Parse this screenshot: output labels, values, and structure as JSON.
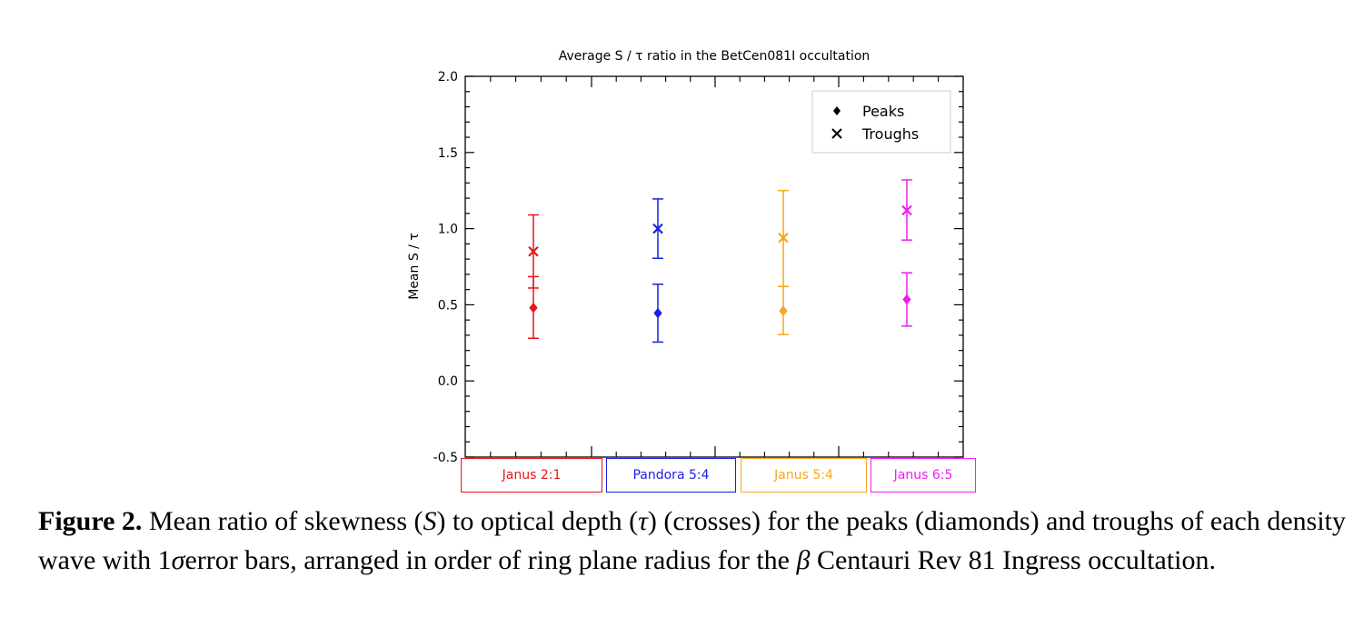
{
  "chart_data": {
    "type": "scatter",
    "title": "Average S / τ ratio in the BetCen081I occultation",
    "ylabel": "Mean S / τ",
    "xlabel": "",
    "ylim": [
      -0.5,
      2.0
    ],
    "yticks": [
      "2.0",
      "1.5",
      "1.0",
      "0.5",
      "0.0",
      "-0.5"
    ],
    "categories": [
      {
        "label": "Janus 2:1",
        "color": "#e8141c"
      },
      {
        "label": "Pandora 5:4",
        "color": "#1a1fe0"
      },
      {
        "label": "Janus 5:4",
        "color": "#f4a71f"
      },
      {
        "label": "Janus 6:5",
        "color": "#f01cf0"
      }
    ],
    "series": [
      {
        "name": "Peaks",
        "marker": "diamond",
        "values": [
          0.48,
          0.445,
          0.46,
          0.535
        ],
        "err_low": [
          0.28,
          0.255,
          0.305,
          0.36
        ],
        "err_high": [
          0.685,
          0.635,
          0.62,
          0.71
        ]
      },
      {
        "name": "Troughs",
        "marker": "x",
        "values": [
          0.85,
          1.0,
          0.94,
          1.12
        ],
        "err_low": [
          0.61,
          0.805,
          0.62,
          0.925
        ],
        "err_high": [
          1.09,
          1.195,
          1.25,
          1.32
        ]
      }
    ],
    "legend_position": "top-right",
    "grid": false
  },
  "caption": {
    "label": "Figure 2.",
    "parts": [
      " Mean ratio of skewness (",
      "S",
      ") to optical depth (",
      "τ",
      ") (crosses) for the peaks (diamonds) and troughs of each density wave with 1",
      "σ",
      "error bars, arranged in order of ring plane radius for the ",
      "β",
      " Centauri Rev 81 Ingress occultation."
    ]
  }
}
